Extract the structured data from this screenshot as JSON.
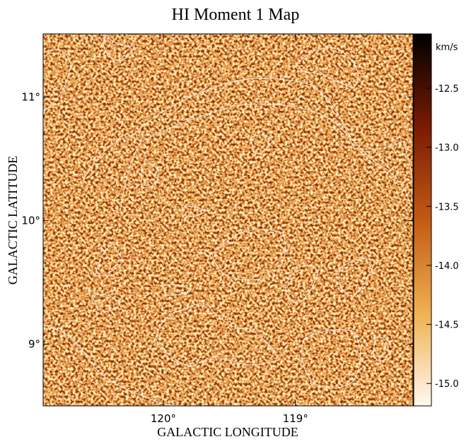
{
  "chart_data": {
    "type": "image",
    "title": "HI Moment 1 Map",
    "x_label": "GALACTIC LONGITUDE",
    "y_label": "GALACTIC LATITUDE",
    "xlim": [
      120.91,
      118.11
    ],
    "xticks": [
      {
        "value": 120,
        "label": "120°"
      },
      {
        "value": 119,
        "label": "119°"
      }
    ],
    "ylim": [
      8.5,
      11.51
    ],
    "yticks": [
      {
        "value": 9,
        "label": "9°"
      },
      {
        "value": 10,
        "label": "10°"
      },
      {
        "value": 11,
        "label": "11°"
      }
    ],
    "colorbar": {
      "label": "km/s",
      "lim": [
        -15.19,
        -12.04
      ],
      "ticks": [
        -12.5,
        {
          "value": -13,
          "label": "-13.0"
        },
        -13.5,
        {
          "value": -14,
          "label": "-14.0"
        },
        -14.5,
        {
          "value": -15,
          "label": "-15.0"
        }
      ],
      "colormap": [
        "#fff8f0",
        "#f0b050",
        "#c25a14",
        "#7a1a04",
        "#000000"
      ]
    }
  }
}
